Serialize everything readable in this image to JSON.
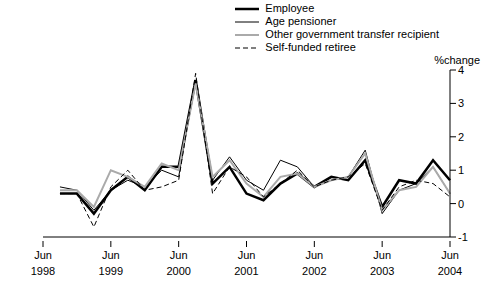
{
  "chart_data": {
    "type": "line",
    "y_label": "%change",
    "categories": [
      "Jun 1998",
      null,
      null,
      null,
      "Jun 1999",
      null,
      null,
      null,
      "Jun 2000",
      null,
      null,
      null,
      "Jun 2001",
      null,
      null,
      null,
      "Jun 2002",
      null,
      null,
      null,
      "Jun 2003",
      null,
      null,
      null,
      "Jun 2004"
    ],
    "series": [
      {
        "name": "Employee",
        "color": "#000000",
        "line_style": "solid",
        "values": [
          null,
          0.3,
          0.3,
          -0.3,
          0.4,
          0.8,
          0.4,
          1.1,
          1.1,
          3.7,
          0.6,
          1.1,
          0.3,
          0.1,
          0.6,
          0.9,
          0.5,
          0.8,
          0.7,
          1.3,
          -0.1,
          0.7,
          0.6,
          1.3,
          0.7
        ]
      },
      {
        "name": "Age pensioner",
        "color": "#000000",
        "line_style": "solid",
        "values": [
          null,
          0.5,
          0.4,
          -0.2,
          0.4,
          0.7,
          0.5,
          1.0,
          0.8,
          3.7,
          0.7,
          1.4,
          0.7,
          0.4,
          1.3,
          1.1,
          0.5,
          0.7,
          0.8,
          1.6,
          -0.3,
          0.4,
          0.6,
          1.1,
          0.3
        ]
      },
      {
        "name": "Other government transfer recipient",
        "color": "#aaaaaa",
        "line_style": "solid",
        "values": [
          null,
          0.4,
          0.4,
          -0.1,
          1.0,
          0.8,
          0.5,
          1.2,
          1.0,
          3.6,
          0.8,
          1.3,
          0.6,
          0.2,
          0.8,
          0.9,
          0.5,
          0.7,
          0.8,
          1.5,
          -0.2,
          0.4,
          0.5,
          1.1,
          0.3
        ]
      },
      {
        "name": "Self-funded retiree",
        "color": "#000000",
        "line_style": "dashed",
        "values": [
          null,
          0.3,
          0.3,
          -0.7,
          0.5,
          1.0,
          0.4,
          0.5,
          0.7,
          3.9,
          0.3,
          1.1,
          0.8,
          0.2,
          0.6,
          1.0,
          0.5,
          0.7,
          0.8,
          1.2,
          -0.2,
          0.5,
          0.7,
          0.6,
          0.2
        ]
      }
    ],
    "ylim": [
      -1,
      4
    ],
    "yticks": [
      -1,
      0,
      1,
      2,
      3,
      4
    ],
    "grid": false,
    "legend": "upper right"
  }
}
